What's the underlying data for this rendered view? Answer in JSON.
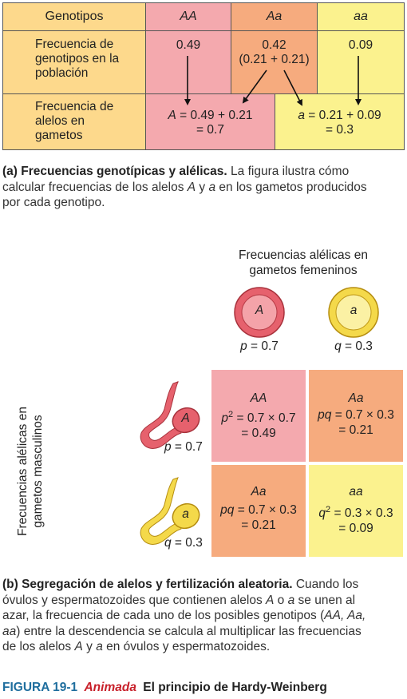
{
  "table": {
    "header": {
      "label": "Genotipos",
      "AA": "AA",
      "Aa": "Aa",
      "aa": "aa"
    },
    "row1": {
      "label_l1": "Frecuencia de",
      "label_l2": "genotipos en la",
      "label_l3": "población",
      "AA": "0.49",
      "Aa_l1": "0.42",
      "Aa_l2": "(0.21 + 0.21)",
      "aa": "0.09"
    },
    "row2": {
      "label_l1": "Frecuencia de",
      "label_l2": "alelos en",
      "label_l3": "gametos",
      "A_allele": "A",
      "A_l1": " = 0.49 + 0.21",
      "A_l2": "= 0.7",
      "a_allele": "a",
      "a_l1": " = 0.21 + 0.09",
      "a_l2": "= 0.3"
    }
  },
  "caption_a": {
    "bold": "(a) Frecuencias genotípicas y alélicas.",
    "l1": " La figura ilustra cómo",
    "l2a": "calcular frecuencias de los alelos ",
    "l2b": "A",
    "l2c": " y ",
    "l2d": "a",
    "l2e": " en los gametos producidos",
    "l3": "por cada genotipo."
  },
  "female": {
    "title_l1": "Frecuencias alélicas en",
    "title_l2": "gametos femeninos",
    "egg_A": "A",
    "egg_a": "a",
    "p_label": "p",
    "p_value": " = 0.7",
    "q_label": "q",
    "q_value": " = 0.3"
  },
  "male": {
    "title_l1": "Frecuencias alélicas en",
    "title_l2": "gametos masculinos",
    "sperm_A": "A",
    "sperm_a": "a",
    "p_label": "p",
    "p_value": " = 0.7",
    "q_label": "q",
    "q_value": " = 0.3"
  },
  "punnett": {
    "tl": {
      "genotype": "AA",
      "expr_a": "p",
      "expr_b": "2",
      "expr_c": " = 0.7 × 0.7",
      "result": "= 0.49"
    },
    "tr": {
      "genotype": "Aa",
      "expr_a": "pq",
      "expr_c": " = 0.7 × 0.3",
      "result": "= 0.21"
    },
    "bl": {
      "genotype": "Aa",
      "expr_a": "pq",
      "expr_c": " = 0.7 × 0.3",
      "result": "= 0.21"
    },
    "br": {
      "genotype": "aa",
      "expr_a": "q",
      "expr_b": "2",
      "expr_c": " = 0.3 × 0.3",
      "result": "= 0.09"
    }
  },
  "caption_b": {
    "bold": "(b) Segregación de alelos y fertilización aleatoria.",
    "l1": " Cuando los",
    "l2a": "óvulos y espermatozoides que contienen alelos ",
    "l2b": "A",
    "l2c": " o ",
    "l2d": "a",
    "l2e": " se unen al",
    "l3a": "azar, la frecuencia de cada uno de los posibles genotipos (",
    "l3b": "AA, Aa,",
    "l4a": "aa",
    "l4b": ") entre la descendencia se calcula al multiplicar las frecuencias",
    "l5a": "de los alelos ",
    "l5b": "A",
    "l5c": " y ",
    "l5d": "a",
    "l5e": " en óvulos y espermatozoides."
  },
  "figure": {
    "number": "FIGURA 19-1",
    "animated": "Animada",
    "title": "El principio de Hardy-Weinberg"
  },
  "colors": {
    "pink": "#f4a9ae",
    "salmon": "#f6ab7e",
    "yellow": "#fbf28e",
    "label_bg": "#fdd98c",
    "figure_blue": "#1f6e9e",
    "animada_red": "#c8202a"
  }
}
